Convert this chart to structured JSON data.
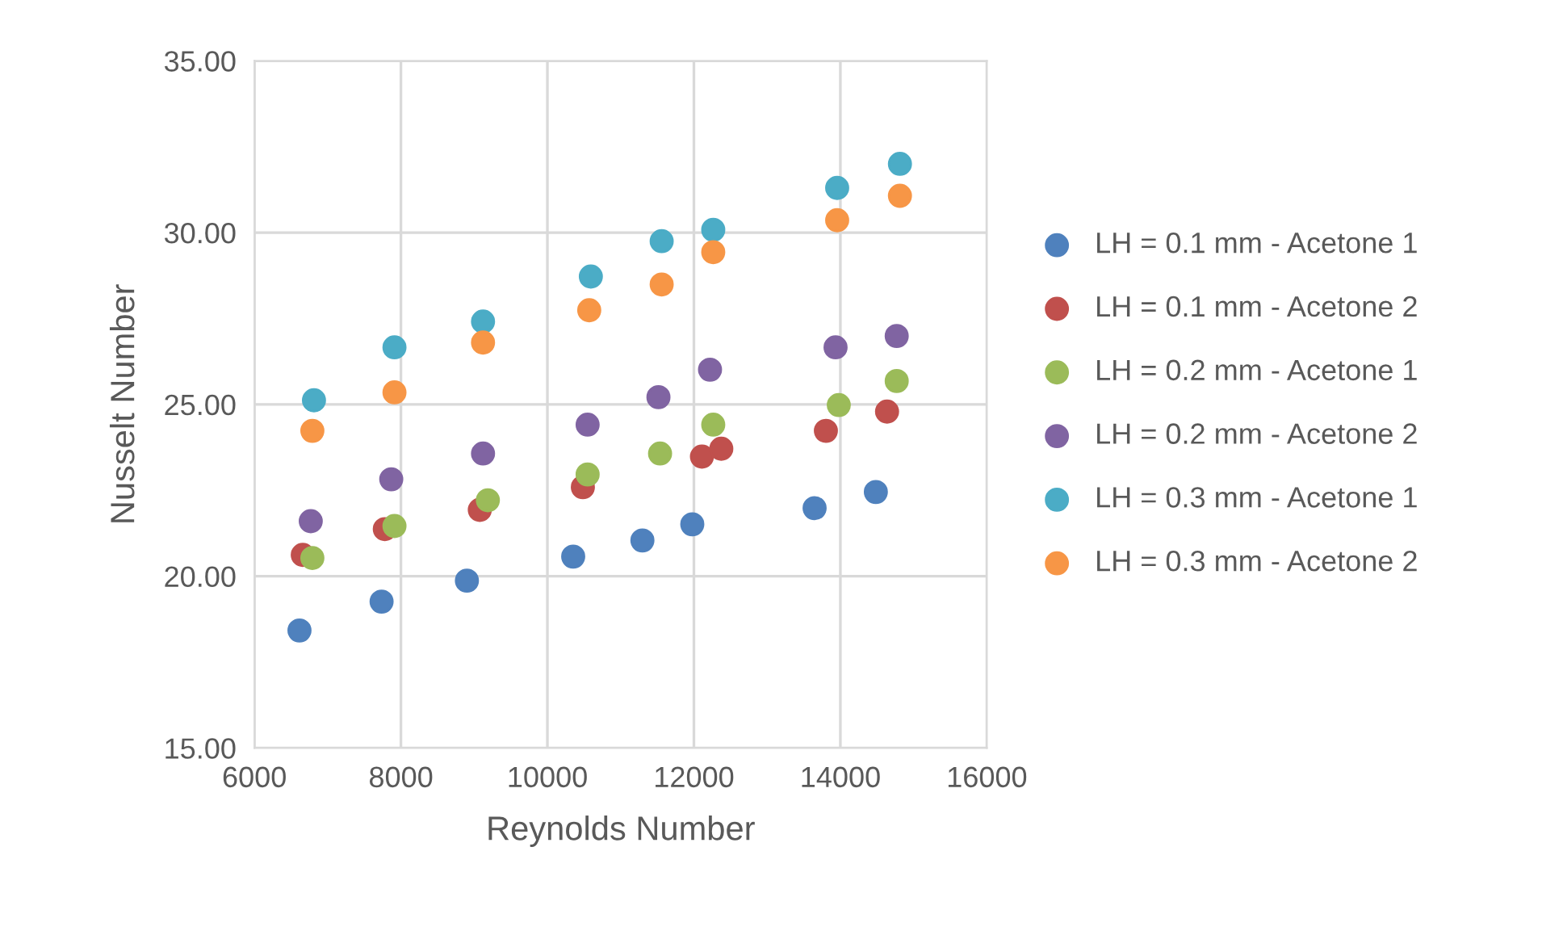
{
  "chart_data": {
    "type": "scatter",
    "xlabel": "Reynolds Number",
    "ylabel": "Nusselt Number",
    "xlim": [
      6000,
      16000
    ],
    "xticks": [
      6000,
      8000,
      10000,
      12000,
      14000,
      16000
    ],
    "ylim": [
      15,
      35
    ],
    "yticks": [
      {
        "value": 15,
        "label": "15.00"
      },
      {
        "value": 20,
        "label": "20.00"
      },
      {
        "value": 25,
        "label": "25.00"
      },
      {
        "value": 30,
        "label": "30.00"
      },
      {
        "value": 35,
        "label": "35.00"
      }
    ],
    "grid": true,
    "legend": "right",
    "marker": "circle",
    "series": [
      {
        "name": "LH = 0.1 mm - Acetone 1",
        "color": "#4f81bd",
        "x": [
          6615,
          7736,
          8901,
          10352,
          11297,
          11978,
          13648,
          14484
        ],
        "values": [
          18.42,
          19.26,
          19.87,
          20.57,
          21.04,
          21.51,
          21.98,
          22.45
        ]
      },
      {
        "name": "LH = 0.1 mm - Acetone 2",
        "color": "#c0504d",
        "x": [
          6660,
          7780,
          9077,
          10484,
          12110,
          12374,
          13802,
          14637
        ],
        "values": [
          20.62,
          21.37,
          21.93,
          22.59,
          23.48,
          23.71,
          24.23,
          24.79
        ]
      },
      {
        "name": "LH = 0.2 mm - Acetone 1",
        "color": "#9bbb59",
        "x": [
          6791,
          7912,
          9187,
          10549,
          11538,
          12264,
          13978,
          14769
        ],
        "values": [
          20.53,
          21.46,
          22.21,
          22.96,
          23.57,
          24.41,
          24.98,
          25.68
        ]
      },
      {
        "name": "LH = 0.2 mm - Acetone 2",
        "color": "#8064a2",
        "x": [
          6769,
          7868,
          9121,
          10549,
          11516,
          12220,
          13934,
          14769
        ],
        "values": [
          21.6,
          22.82,
          23.57,
          24.41,
          25.21,
          26.01,
          26.66,
          26.99
        ]
      },
      {
        "name": "LH = 0.3 mm - Acetone 1",
        "color": "#4bacc6",
        "x": [
          6813,
          7912,
          9121,
          10593,
          11560,
          12264,
          13956,
          14813
        ],
        "values": [
          25.12,
          26.66,
          27.41,
          28.72,
          29.75,
          30.08,
          31.3,
          32.0
        ]
      },
      {
        "name": "LH = 0.3 mm - Acetone 2",
        "color": "#f79646",
        "x": [
          6791,
          7912,
          9121,
          10571,
          11560,
          12264,
          13956,
          14813
        ],
        "values": [
          24.23,
          25.35,
          26.8,
          27.74,
          28.49,
          29.43,
          30.36,
          31.07
        ]
      }
    ]
  }
}
